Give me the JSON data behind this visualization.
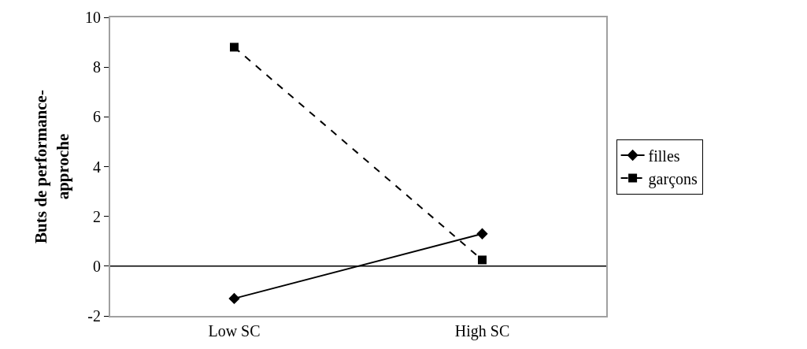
{
  "chart_data": {
    "type": "line",
    "ylabel": "Buts de performance-\napproche",
    "categories": [
      "Low SC",
      "High SC"
    ],
    "series": [
      {
        "name": "filles",
        "color": "#000000",
        "values": [
          -1.3,
          1.3
        ],
        "marker": "diamond",
        "line_style": "solid"
      },
      {
        "name": "garçons",
        "color": "#000000",
        "values": [
          8.8,
          0.25
        ],
        "marker": "square",
        "line_style": "dashed"
      }
    ],
    "ylim": [
      -2,
      10
    ],
    "yticks": [
      -2,
      0,
      2,
      4,
      6,
      8,
      10
    ],
    "grid": false,
    "legend": "right",
    "ref_lines": [
      {
        "axis": "y",
        "value": 0,
        "color": "#000000"
      }
    ]
  }
}
